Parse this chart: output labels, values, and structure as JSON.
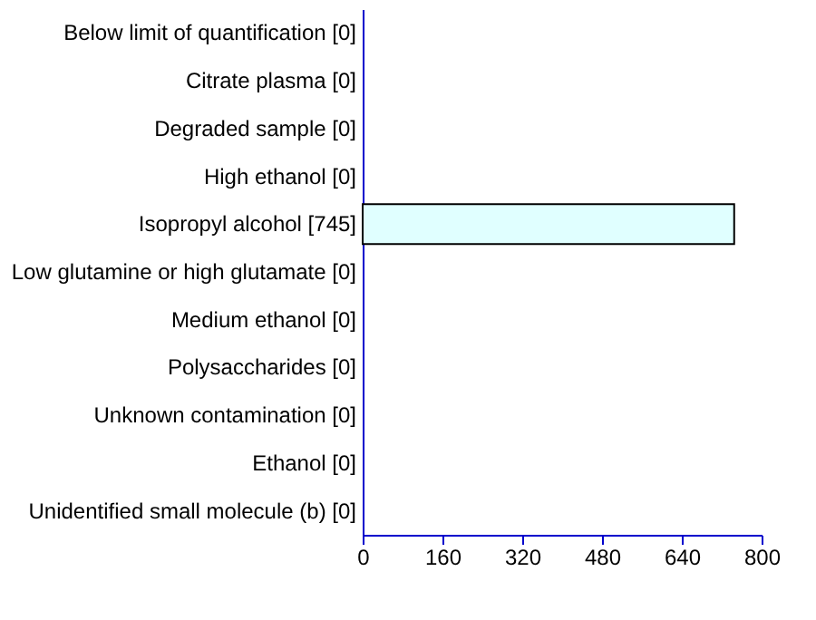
{
  "chart_data": {
    "type": "bar",
    "orientation": "horizontal",
    "categories": [
      "Below limit of quantification [0]",
      "Citrate plasma [0]",
      "Degraded sample [0]",
      "High ethanol [0]",
      "Isopropyl alcohol [745]",
      "Low glutamine or high glutamate [0]",
      "Medium ethanol [0]",
      "Polysaccharides [0]",
      "Unknown contamination [0]",
      "Ethanol [0]",
      "Unidentified small molecule (b) [0]"
    ],
    "values": [
      0,
      0,
      0,
      0,
      745,
      0,
      0,
      0,
      0,
      0,
      0
    ],
    "color": "#e0ffff",
    "xlim": [
      0,
      800
    ],
    "xticks": [
      0,
      160,
      320,
      480,
      640,
      800
    ],
    "grid": false
  }
}
